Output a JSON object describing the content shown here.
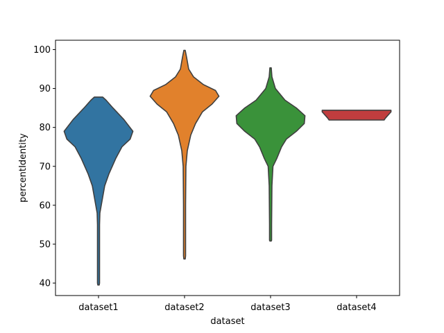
{
  "chart_data": {
    "type": "violin",
    "title": "",
    "xlabel": "dataset",
    "ylabel": "percentIdentity",
    "ylim": [
      36.8,
      102.4
    ],
    "yticks": [
      40,
      50,
      60,
      70,
      80,
      90,
      100
    ],
    "ytick_labels": [
      "40",
      "50",
      "60",
      "70",
      "80",
      "90",
      "100"
    ],
    "categories": [
      "dataset1",
      "dataset2",
      "dataset3",
      "dataset4"
    ],
    "colors": [
      "#3274a1",
      "#e1812c",
      "#3a923a",
      "#c03d3e"
    ],
    "series": [
      {
        "category": "dataset1",
        "range": [
          39.5,
          87.8
        ],
        "profile": [
          [
            87.8,
            0.12
          ],
          [
            87,
            0.22
          ],
          [
            85,
            0.42
          ],
          [
            82,
            0.74
          ],
          [
            79,
            1.0
          ],
          [
            77,
            0.92
          ],
          [
            75,
            0.68
          ],
          [
            72,
            0.5
          ],
          [
            68,
            0.3
          ],
          [
            65,
            0.18
          ],
          [
            62,
            0.12
          ],
          [
            58,
            0.04
          ],
          [
            55,
            0.03
          ],
          [
            40,
            0.03
          ],
          [
            39.5,
            0.02
          ]
        ]
      },
      {
        "category": "dataset2",
        "range": [
          46.2,
          99.8
        ],
        "profile": [
          [
            99.8,
            0.02
          ],
          [
            98,
            0.06
          ],
          [
            95,
            0.12
          ],
          [
            93,
            0.26
          ],
          [
            91,
            0.55
          ],
          [
            89.5,
            0.9
          ],
          [
            88,
            1.0
          ],
          [
            86,
            0.8
          ],
          [
            84,
            0.52
          ],
          [
            81,
            0.32
          ],
          [
            78,
            0.18
          ],
          [
            74,
            0.08
          ],
          [
            70,
            0.04
          ],
          [
            60,
            0.03
          ],
          [
            47,
            0.03
          ],
          [
            46.2,
            0.02
          ]
        ]
      },
      {
        "category": "dataset3",
        "range": [
          50.8,
          95.3
        ],
        "profile": [
          [
            95.3,
            0.02
          ],
          [
            93,
            0.04
          ],
          [
            90,
            0.14
          ],
          [
            87,
            0.42
          ],
          [
            85,
            0.75
          ],
          [
            83,
            1.0
          ],
          [
            81,
            0.98
          ],
          [
            79,
            0.75
          ],
          [
            77,
            0.46
          ],
          [
            75,
            0.32
          ],
          [
            72,
            0.18
          ],
          [
            70,
            0.07
          ],
          [
            65,
            0.04
          ],
          [
            55,
            0.03
          ],
          [
            51,
            0.03
          ],
          [
            50.8,
            0.02
          ]
        ]
      },
      {
        "category": "dataset4",
        "range": [
          81.9,
          84.4
        ],
        "profile": [
          [
            84.4,
            1.0
          ],
          [
            84.0,
            1.0
          ],
          [
            83.2,
            0.92
          ],
          [
            82.4,
            0.84
          ],
          [
            81.9,
            0.8
          ]
        ]
      }
    ]
  }
}
